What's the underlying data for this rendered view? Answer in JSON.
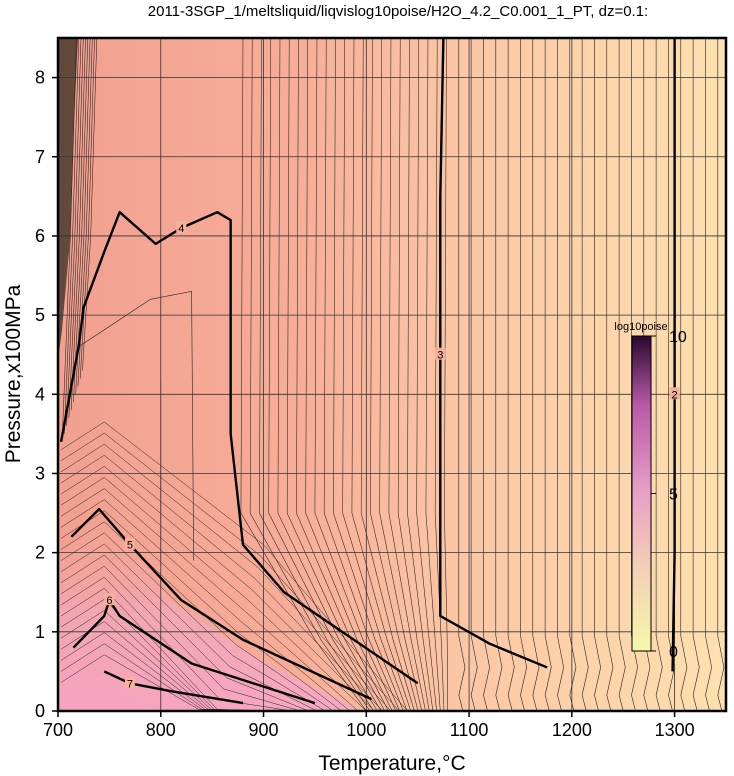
{
  "chart_data": {
    "type": "heatmap",
    "title": "2011-3SGP_1/meltsliquid/liqvislog10poise/H2O_4.2_C0.001_1_PT, dz=0.1:",
    "xlabel": "Temperature,°C",
    "ylabel": "Pressure,x100MPa",
    "xlim": [
      700,
      1350
    ],
    "ylim": [
      0,
      8.5
    ],
    "x_ticks": [
      700,
      800,
      900,
      1000,
      1100,
      1200,
      1300
    ],
    "y_ticks": [
      0,
      1,
      2,
      3,
      4,
      5,
      6,
      7,
      8
    ],
    "x_tick_labels": [
      "700",
      "800",
      "900",
      "1000",
      "1100",
      "1200",
      "1300"
    ],
    "y_tick_labels": [
      "0",
      "1",
      "2",
      "3",
      "4",
      "5",
      "6",
      "7",
      "8"
    ],
    "grid": true,
    "contour_interval": 0.1,
    "colorbar": {
      "label": "log10poise",
      "range": [
        0,
        10
      ],
      "ticks": [
        0,
        5,
        10
      ],
      "tick_labels": [
        "0",
        "5",
        "10"
      ],
      "colors": [
        "#f6f8a8",
        "#f2c8b6",
        "#e090b8",
        "#b85a9a",
        "#2a0830"
      ]
    },
    "labeled_contours": [
      {
        "level": 2,
        "label": "2",
        "points": [
          [
            1298,
            0.5
          ],
          [
            1300,
            2
          ],
          [
            1300,
            4
          ],
          [
            1300,
            6
          ],
          [
            1300,
            8.5
          ]
        ]
      },
      {
        "level": 3,
        "label": "3",
        "points": [
          [
            1176,
            0.55
          ],
          [
            1120,
            0.85
          ],
          [
            1072,
            1.2
          ],
          [
            1072,
            4.5
          ],
          [
            1072,
            6.5
          ],
          [
            1075,
            8.5
          ]
        ]
      },
      {
        "level": 4,
        "label": "4",
        "points": [
          [
            1050,
            0.35
          ],
          [
            920,
            1.5
          ],
          [
            880,
            2.1
          ],
          [
            868,
            3.5
          ],
          [
            868,
            6.2
          ],
          [
            855,
            6.3
          ],
          [
            820,
            6.1
          ],
          [
            795,
            5.9
          ],
          [
            760,
            6.3
          ],
          [
            745,
            5.8
          ],
          [
            725,
            5.1
          ],
          [
            720,
            4.6
          ],
          [
            703,
            3.4
          ]
        ]
      },
      {
        "level": 5,
        "label": "5",
        "points": [
          [
            1005,
            0.15
          ],
          [
            880,
            0.9
          ],
          [
            820,
            1.4
          ],
          [
            770,
            2.1
          ],
          [
            740,
            2.55
          ],
          [
            713,
            2.2
          ]
        ]
      },
      {
        "level": 6,
        "label": "6",
        "points": [
          [
            950,
            0.1
          ],
          [
            830,
            0.6
          ],
          [
            760,
            1.2
          ],
          [
            750,
            1.4
          ],
          [
            745,
            1.2
          ],
          [
            715,
            0.8
          ]
        ]
      },
      {
        "level": 7,
        "label": "7",
        "points": [
          [
            880,
            0.1
          ],
          [
            810,
            0.25
          ],
          [
            770,
            0.35
          ],
          [
            745,
            0.5
          ]
        ]
      }
    ],
    "series": []
  }
}
